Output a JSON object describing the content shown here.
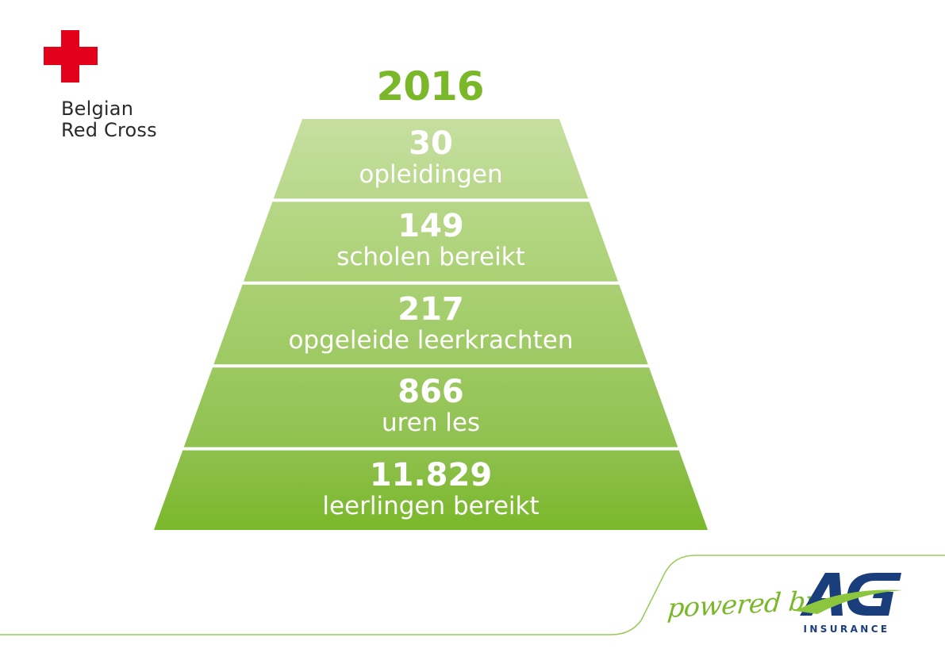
{
  "logo": {
    "name_line1": "Belgian",
    "name_line2": "Red Cross",
    "cross_color": "#e2001a",
    "icon": "red-cross-icon"
  },
  "title": "2016",
  "pyramid": {
    "levels": [
      {
        "value": "30",
        "label": "opleidingen",
        "color_top": "#c6dfa0",
        "color_bottom": "#b8d88a"
      },
      {
        "value": "149",
        "label": "scholen bereikt",
        "color_top": "#b7d787",
        "color_bottom": "#aad174"
      },
      {
        "value": "217",
        "label": "opgeleide leerkrachten",
        "color_top": "#a9d073",
        "color_bottom": "#9dc962"
      },
      {
        "value": "866",
        "label": "uren les",
        "color_top": "#9cc861",
        "color_bottom": "#8fc14f"
      },
      {
        "value": "11.829",
        "label": "leerlingen bereikt",
        "color_top": "#8fc04e",
        "color_bottom": "#7ab82a"
      }
    ]
  },
  "footer": {
    "powered_by": "powered by",
    "sponsor_logo": "AG",
    "sponsor_sub": "INSURANCE",
    "line_color": "#9ccb5c",
    "sponsor_color": "#1a3d7c",
    "sponsor_accent": "#8cc63f"
  }
}
